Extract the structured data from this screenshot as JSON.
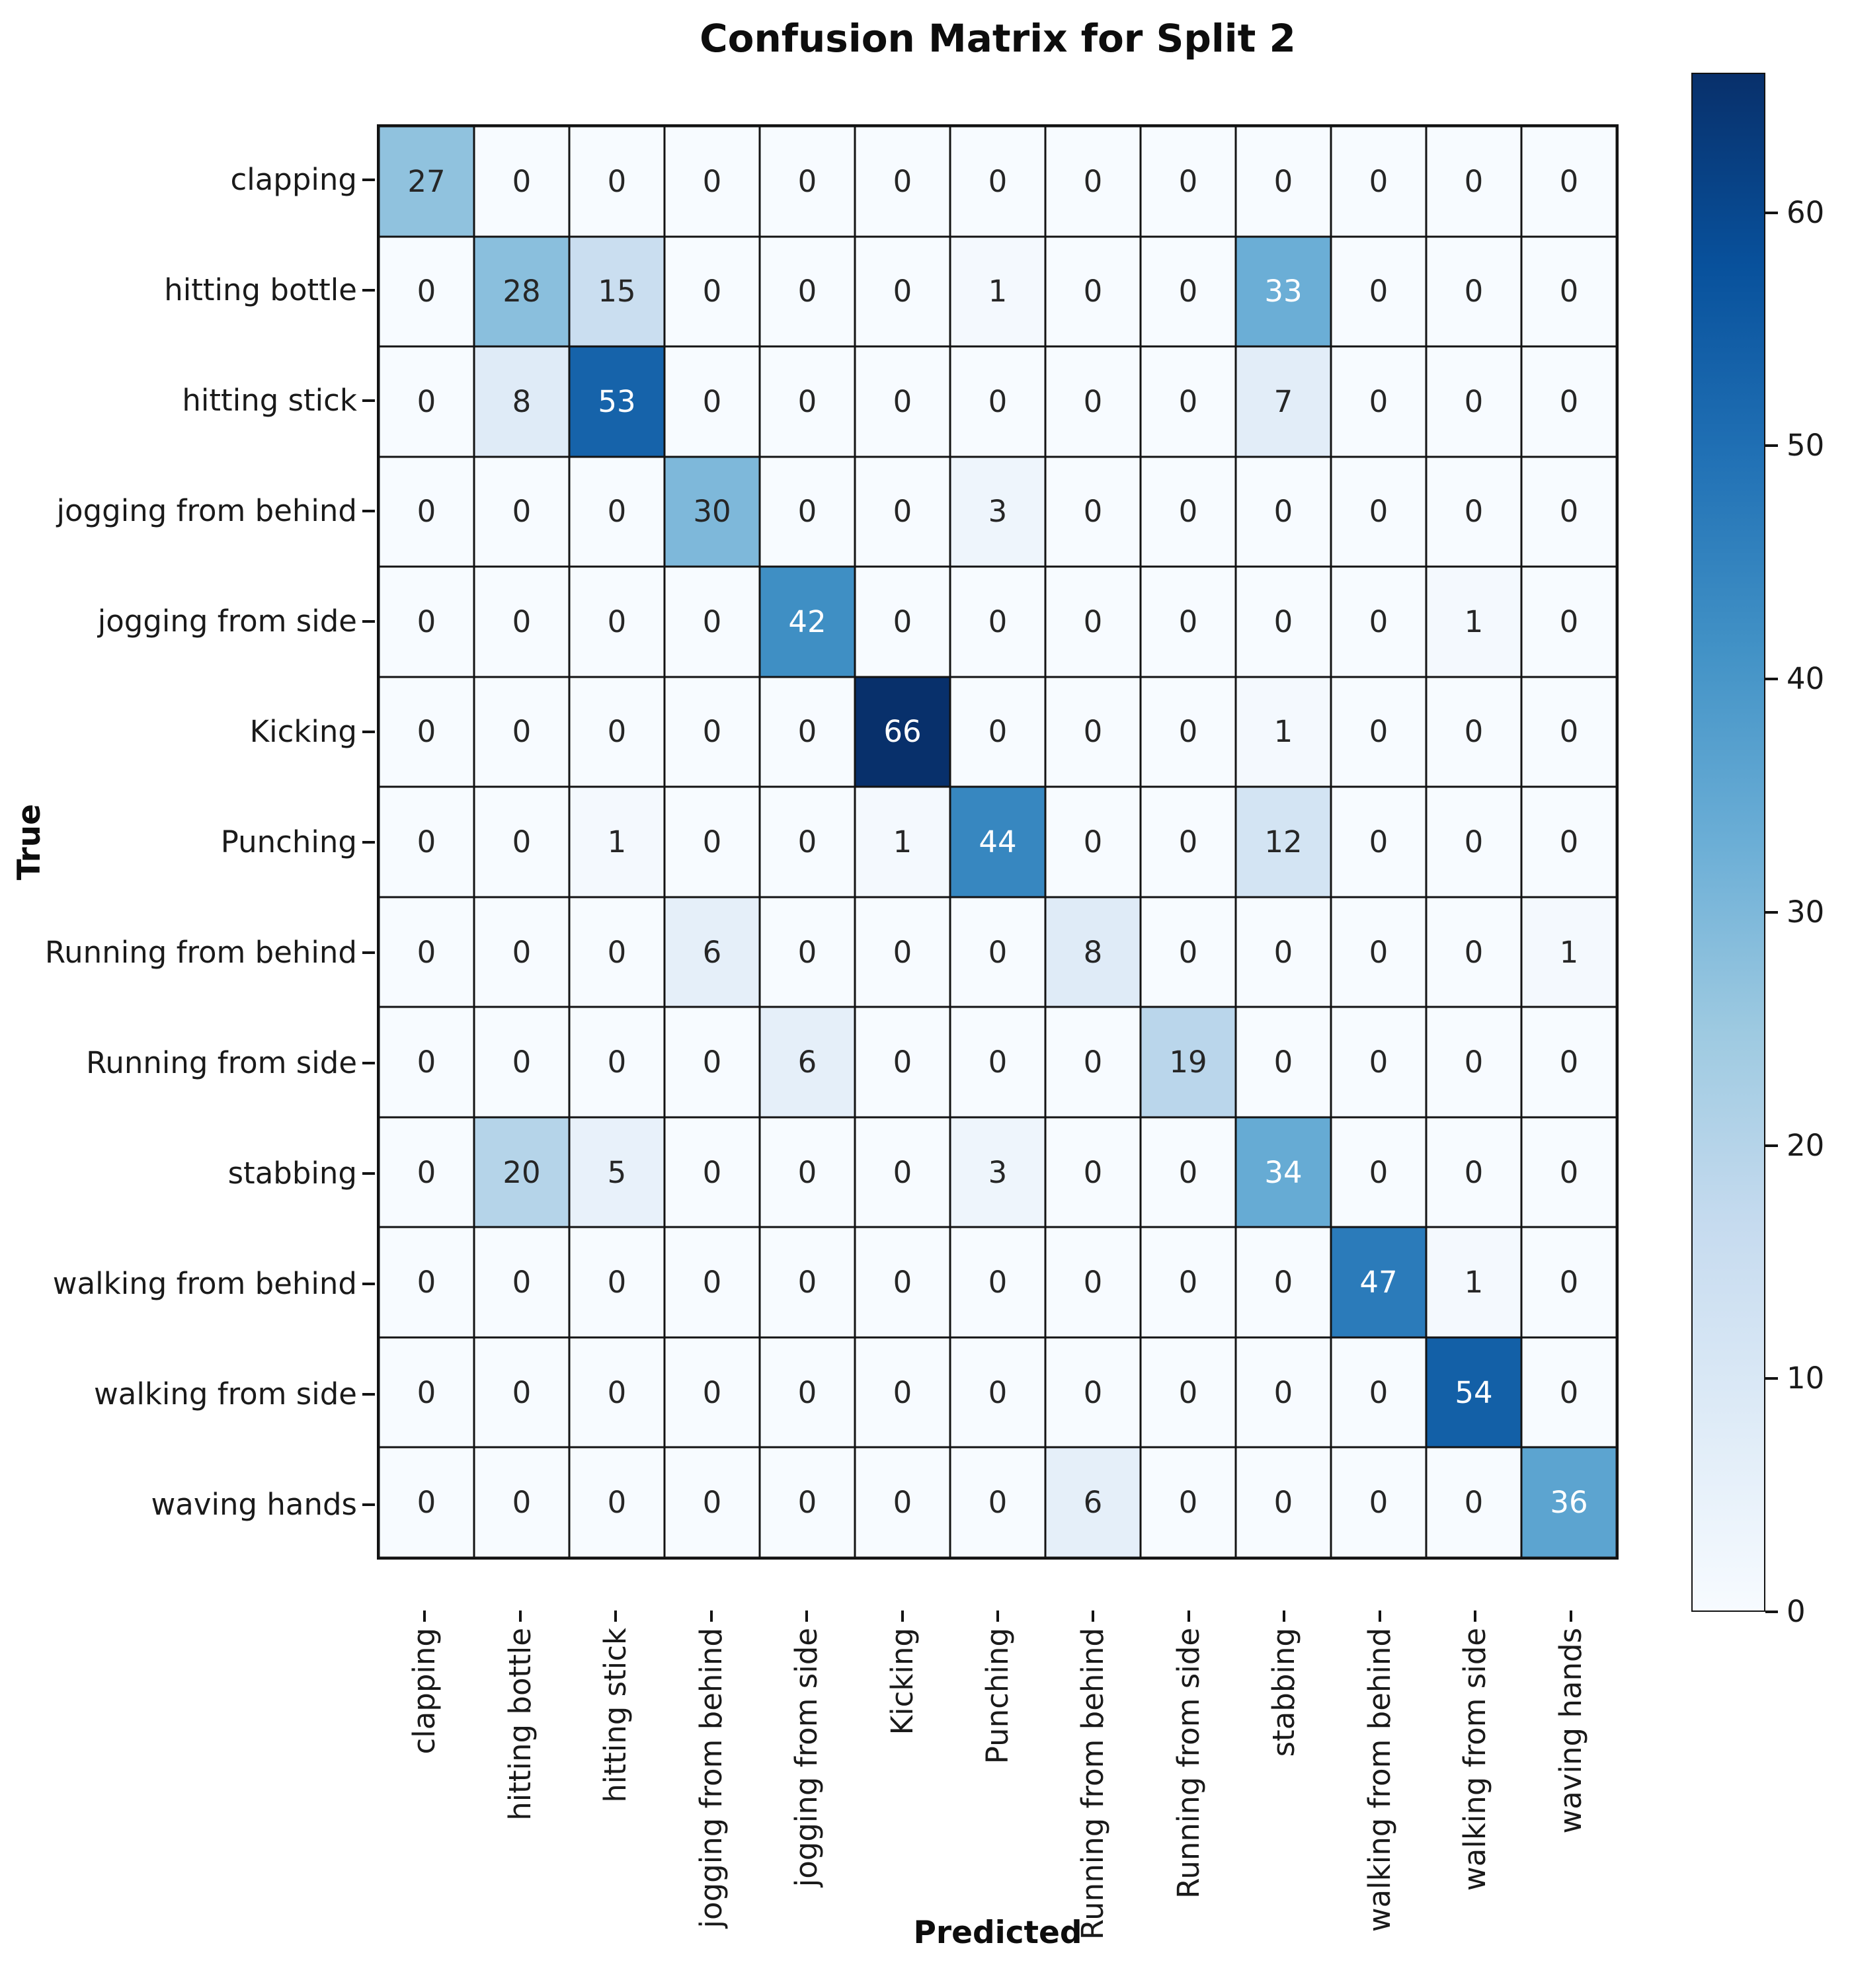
{
  "title": "Confusion Matrix for Split 2",
  "x_axis_label": "Predicted",
  "y_axis_label": "True",
  "chart_data": {
    "type": "heatmap",
    "title": "Confusion Matrix for Split 2",
    "xlabel": "Predicted",
    "ylabel": "True",
    "categories": [
      "clapping",
      "hitting bottle",
      "hitting stick",
      "jogging from behind",
      "jogging from side",
      "Kicking",
      "Punching",
      "Running from behind",
      "Running from side",
      "stabbing",
      "walking from behind",
      "walking from side",
      "waving hands"
    ],
    "matrix": [
      [
        27,
        0,
        0,
        0,
        0,
        0,
        0,
        0,
        0,
        0,
        0,
        0,
        0
      ],
      [
        0,
        28,
        15,
        0,
        0,
        0,
        1,
        0,
        0,
        33,
        0,
        0,
        0
      ],
      [
        0,
        8,
        53,
        0,
        0,
        0,
        0,
        0,
        0,
        7,
        0,
        0,
        0
      ],
      [
        0,
        0,
        0,
        30,
        0,
        0,
        3,
        0,
        0,
        0,
        0,
        0,
        0
      ],
      [
        0,
        0,
        0,
        0,
        42,
        0,
        0,
        0,
        0,
        0,
        0,
        1,
        0
      ],
      [
        0,
        0,
        0,
        0,
        0,
        66,
        0,
        0,
        0,
        1,
        0,
        0,
        0
      ],
      [
        0,
        0,
        1,
        0,
        0,
        1,
        44,
        0,
        0,
        12,
        0,
        0,
        0
      ],
      [
        0,
        0,
        0,
        6,
        0,
        0,
        0,
        8,
        0,
        0,
        0,
        0,
        1
      ],
      [
        0,
        0,
        0,
        0,
        6,
        0,
        0,
        0,
        19,
        0,
        0,
        0,
        0
      ],
      [
        0,
        20,
        5,
        0,
        0,
        0,
        3,
        0,
        0,
        34,
        0,
        0,
        0
      ],
      [
        0,
        0,
        0,
        0,
        0,
        0,
        0,
        0,
        0,
        0,
        47,
        1,
        0
      ],
      [
        0,
        0,
        0,
        0,
        0,
        0,
        0,
        0,
        0,
        0,
        0,
        54,
        0
      ],
      [
        0,
        0,
        0,
        0,
        0,
        0,
        0,
        6,
        0,
        0,
        0,
        0,
        36
      ]
    ],
    "vmin": 0,
    "vmax": 66,
    "colormap": "Blues",
    "colorbar_ticks": [
      0,
      10,
      20,
      30,
      40,
      50,
      60
    ],
    "colorbar_position": "right",
    "grid": true
  },
  "colors": {
    "colormap_stops": [
      "#f7fbff",
      "#deebf7",
      "#c6dbef",
      "#9ecae1",
      "#6baed6",
      "#4292c6",
      "#2171b5",
      "#08519c",
      "#08306b"
    ],
    "grid_line": "#131313",
    "annotation_dark": "#262626",
    "annotation_light": "#ffffff",
    "background": "#ffffff"
  }
}
